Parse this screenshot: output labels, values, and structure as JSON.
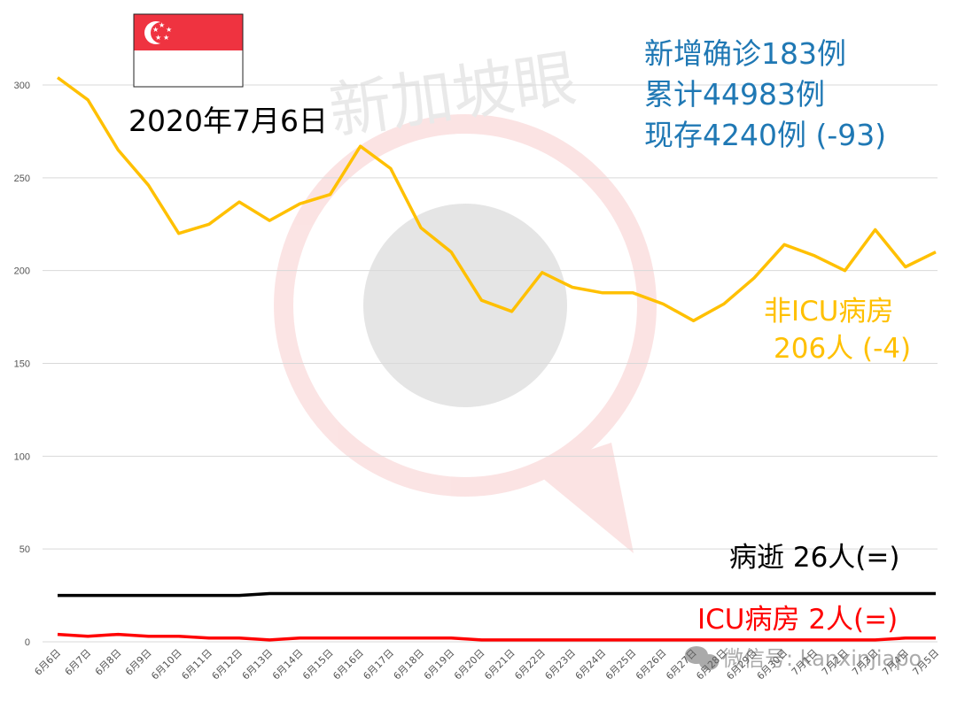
{
  "flag": {
    "colors": {
      "red": "#EF3340",
      "white": "#FFFFFF"
    }
  },
  "date_label": "2020年7月6日",
  "summary": {
    "new_cases": "新增确诊183例",
    "total_cases": "累计44983例",
    "active_cases": "现存4240例 (-93)",
    "color": "#1F78B4"
  },
  "watermark": {
    "text": "新加坡眼",
    "footer": "微信号: kanxinjiapo"
  },
  "chart_data": {
    "type": "line",
    "ylim": [
      0,
      300
    ],
    "yticks": [
      0,
      50,
      100,
      150,
      200,
      250,
      300
    ],
    "grid": true,
    "categories": [
      "6月6日",
      "6月7日",
      "6月8日",
      "6月9日",
      "6月10日",
      "6月11日",
      "6月12日",
      "6月13日",
      "6月14日",
      "6月15日",
      "6月16日",
      "6月17日",
      "6月18日",
      "6月19日",
      "6月20日",
      "6月21日",
      "6月22日",
      "6月23日",
      "6月24日",
      "6月25日",
      "6月26日",
      "6月27日",
      "6月28日",
      "6月29日",
      "6月30日",
      "7月1日",
      "7月2日",
      "7月3日",
      "7月4日",
      "7月5日"
    ],
    "series": [
      {
        "name": "非ICU病房",
        "color": "#FFC000",
        "values": [
          304,
          292,
          265,
          246,
          220,
          225,
          237,
          227,
          236,
          241,
          267,
          255,
          223,
          210,
          184,
          178,
          199,
          191,
          188,
          188,
          182,
          173,
          182,
          196,
          214,
          208,
          200,
          222,
          202,
          210
        ],
        "annotation": [
          "非ICU病房",
          "206人 (-4)"
        ]
      },
      {
        "name": "病逝",
        "color": "#000000",
        "values": [
          25,
          25,
          25,
          25,
          25,
          25,
          25,
          26,
          26,
          26,
          26,
          26,
          26,
          26,
          26,
          26,
          26,
          26,
          26,
          26,
          26,
          26,
          26,
          26,
          26,
          26,
          26,
          26,
          26,
          26
        ],
        "annotation": [
          "病逝 26人(=)"
        ]
      },
      {
        "name": "ICU病房",
        "color": "#FF0000",
        "values": [
          4,
          3,
          4,
          3,
          3,
          2,
          2,
          1,
          2,
          2,
          2,
          2,
          2,
          2,
          1,
          1,
          1,
          1,
          1,
          1,
          1,
          1,
          1,
          1,
          1,
          1,
          1,
          1,
          2,
          2
        ],
        "annotation": [
          "ICU病房 2人(=)"
        ]
      }
    ]
  }
}
